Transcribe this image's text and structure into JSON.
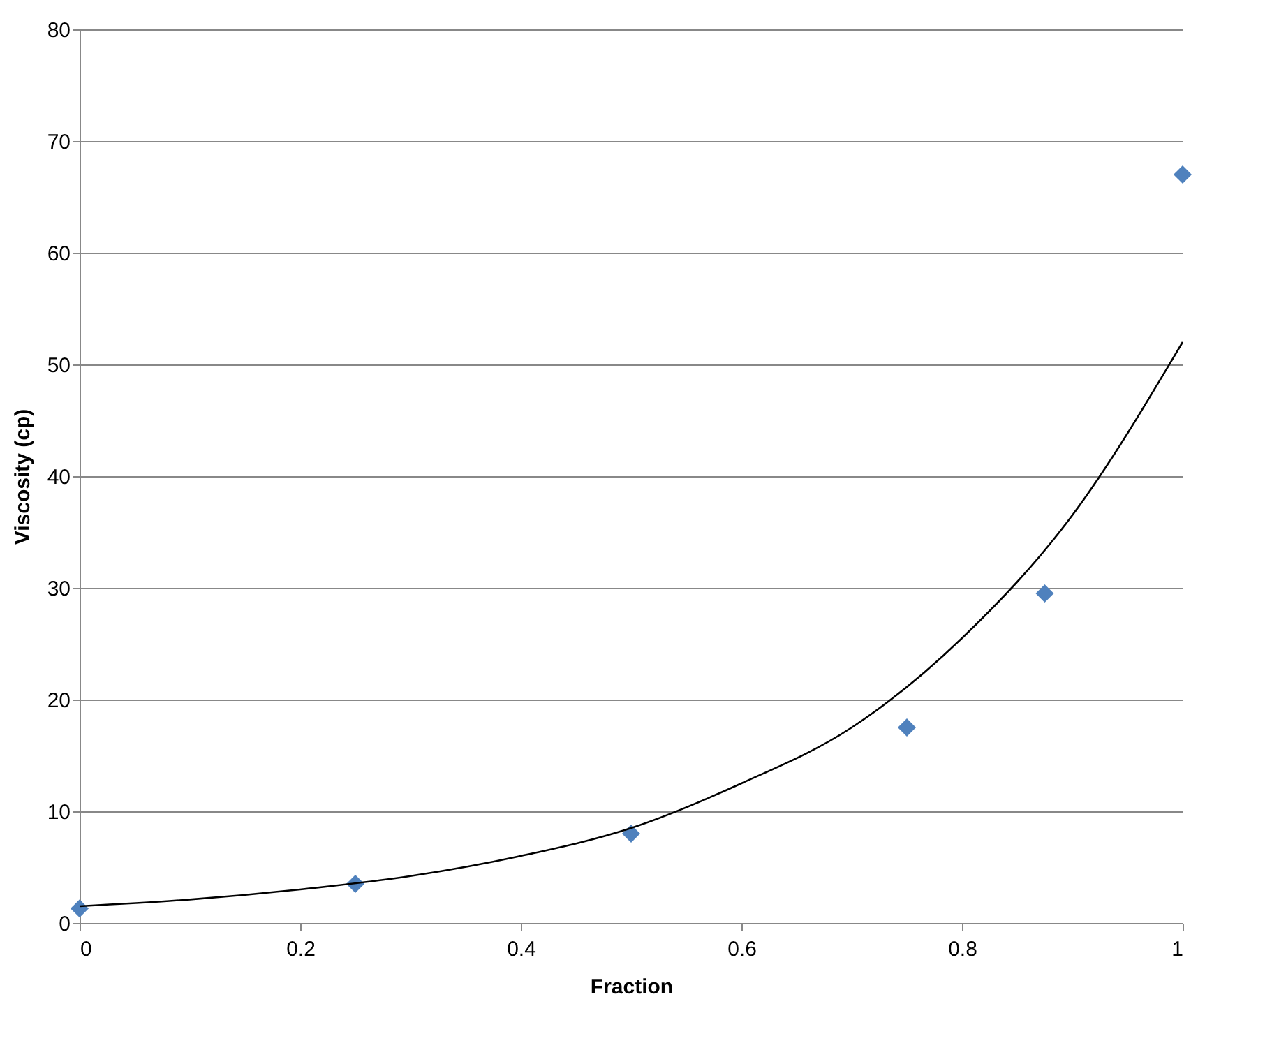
{
  "chart_data": {
    "type": "scatter",
    "xlabel": "Fraction",
    "ylabel": "Viscosity (cp)",
    "marker": "diamond",
    "grid": "y",
    "xlim": [
      0,
      1
    ],
    "xticks": [
      0,
      0.2,
      0.4,
      0.6,
      0.8,
      1
    ],
    "ylim": [
      0,
      80
    ],
    "yticks": [
      0,
      10,
      20,
      30,
      40,
      50,
      60,
      70,
      80
    ],
    "series": [
      {
        "color": "#4f81bd",
        "x": [
          0,
          0.25,
          0.5,
          0.75,
          0.875,
          1
        ],
        "values": [
          1.3,
          3.5,
          8,
          17.5,
          29.5,
          67
        ]
      },
      {
        "type": "line",
        "color": "#000000",
        "line_style": "solid",
        "marker": "none",
        "x": [
          0,
          0.1,
          0.2,
          0.3,
          0.4,
          0.5,
          0.6,
          0.7,
          0.8,
          0.9,
          1
        ],
        "values": [
          1.5,
          2.1,
          3,
          4.2,
          6,
          8.5,
          12.5,
          17.5,
          25.5,
          36.5,
          52
        ]
      }
    ]
  }
}
